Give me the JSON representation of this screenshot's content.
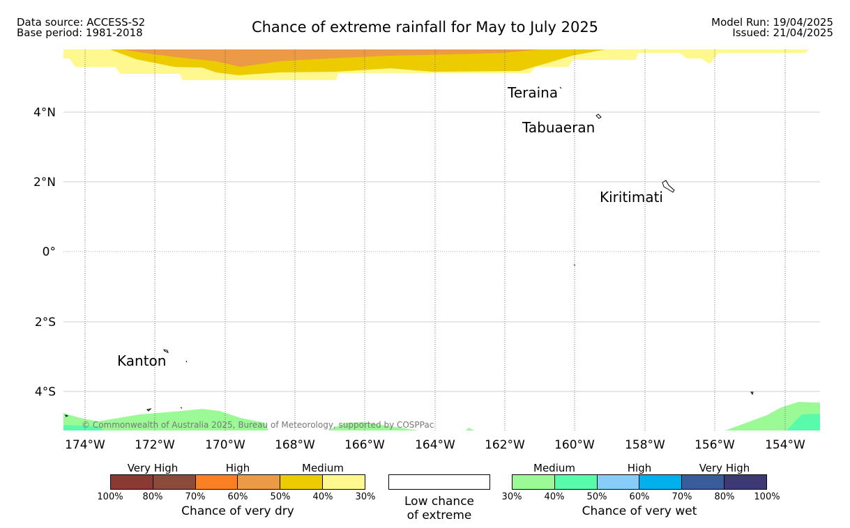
{
  "header": {
    "source": "Data source: ACCESS-S2",
    "base_period": "Base period: 1981-2018",
    "title": "Chance of extreme rainfall for May to July 2025",
    "model_run": "Model Run: 19/04/2025",
    "issued": "Issued: 21/04/2025"
  },
  "map": {
    "x_ticks": [
      "174°W",
      "172°W",
      "170°W",
      "168°W",
      "166°W",
      "164°W",
      "162°W",
      "160°W",
      "158°W",
      "156°W",
      "154°W"
    ],
    "y_ticks": [
      "4°N",
      "2°N",
      "0°",
      "2°S",
      "4°S"
    ],
    "places": [
      {
        "name": "Teraina"
      },
      {
        "name": "Tabuaeran"
      },
      {
        "name": "Kiritimati"
      },
      {
        "name": "Kanton"
      }
    ],
    "copyright": "© Commonwealth of Australia 2025, Bureau of Meteorology, supported by COSPPac"
  },
  "legend": {
    "dry": {
      "groups": [
        "Very High",
        "High",
        "Medium"
      ],
      "colors": [
        "#8b3a33",
        "#8b4a3a",
        "#fb7f23",
        "#ec9a45",
        "#eccb00",
        "#fef88f"
      ],
      "ticks": [
        "100%",
        "80%",
        "70%",
        "60%",
        "50%",
        "40%",
        "30%"
      ],
      "caption": "Chance of very dry"
    },
    "low": {
      "line1": "Low chance",
      "line2": "of extreme"
    },
    "wet": {
      "groups": [
        "Medium",
        "High",
        "Very High"
      ],
      "colors": [
        "#9cfa96",
        "#58fbaa",
        "#88cdf9",
        "#00b0ed",
        "#385d9a",
        "#3d3975"
      ],
      "ticks": [
        "30%",
        "40%",
        "50%",
        "60%",
        "70%",
        "80%",
        "100%"
      ],
      "caption": "Chance of very wet"
    }
  }
}
